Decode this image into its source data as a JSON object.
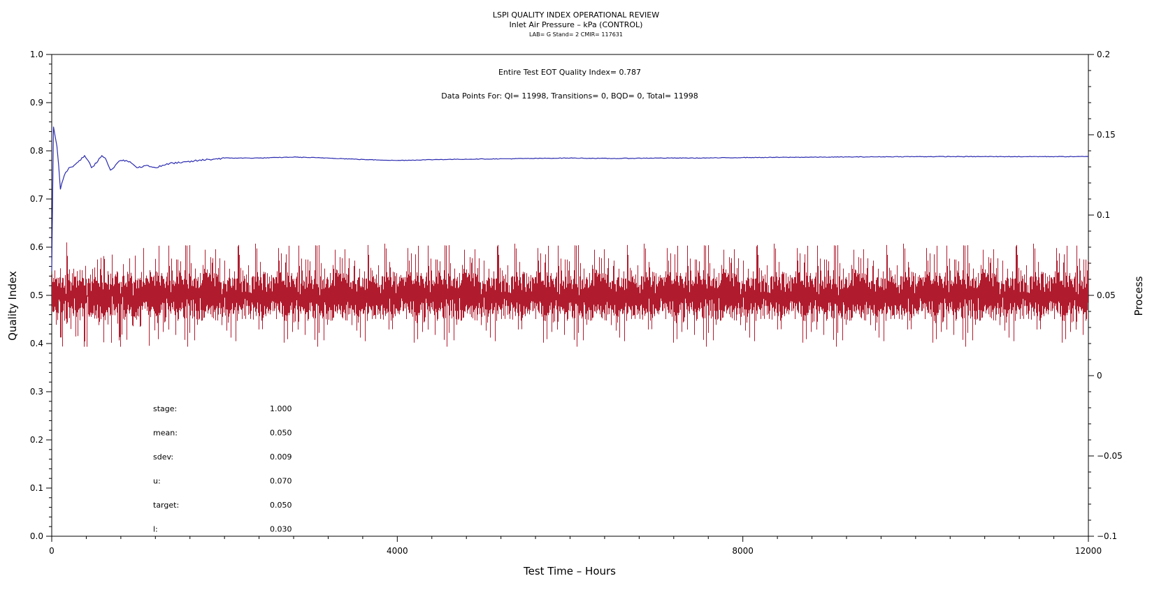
{
  "chart_data": {
    "type": "line",
    "title": "LSPI QUALITY INDEX OPERATIONAL REVIEW",
    "subtitle": "Inlet Air Pressure – kPa (CONTROL)",
    "subtitle2": "LAB= G Stand= 2 CMIR= 117631",
    "xlabel": "Test Time – Hours",
    "ylabel": "Quality Index",
    "y2label": "Process",
    "xlim": [
      0,
      12000
    ],
    "ylim": [
      0,
      1.0
    ],
    "y2lim": [
      -0.1,
      0.2
    ],
    "x_ticks": [
      "0",
      "4000",
      "8000",
      "12000"
    ],
    "y_ticks": [
      "0.0",
      "0.1",
      "0.2",
      "0.3",
      "0.4",
      "0.5",
      "0.6",
      "0.7",
      "0.8",
      "0.9",
      "1.0"
    ],
    "y2_ticks": [
      "−0.1",
      "−0.05",
      "0",
      "0.05",
      "0.1",
      "0.15",
      "0.2"
    ],
    "annotation_quality": "Entire Test EOT Quality Index=   0.787",
    "annotation_points": "Data Points For: QI= 11998, Transitions=     0, BQD=     0, Total= 11998",
    "stats": [
      {
        "label": "stage:",
        "value": "1.000"
      },
      {
        "label": "mean:",
        "value": "0.050"
      },
      {
        "label": "sdev:",
        "value": "0.009"
      },
      {
        "label": "u:",
        "value": "0.070"
      },
      {
        "label": "target:",
        "value": "0.050"
      },
      {
        "label": "l:",
        "value": "0.030"
      }
    ],
    "series": [
      {
        "axis": "left",
        "color": "#2b2bb0",
        "x": [
          0,
          20,
          40,
          60,
          80,
          100,
          130,
          160,
          200,
          260,
          320,
          380,
          420,
          460,
          520,
          580,
          620,
          680,
          720,
          760,
          800,
          860,
          920,
          1000,
          1100,
          1200,
          1300,
          1400,
          1500,
          1700,
          2000,
          2400,
          2800,
          3200,
          3600,
          4000,
          4500,
          5000,
          5500,
          6000,
          6500,
          7000,
          7500,
          8000,
          9000,
          10000,
          11000,
          12000
        ],
        "values": [
          0.55,
          0.85,
          0.83,
          0.81,
          0.77,
          0.72,
          0.74,
          0.755,
          0.765,
          0.77,
          0.78,
          0.79,
          0.78,
          0.765,
          0.775,
          0.79,
          0.785,
          0.76,
          0.765,
          0.775,
          0.78,
          0.78,
          0.775,
          0.765,
          0.77,
          0.765,
          0.77,
          0.775,
          0.775,
          0.78,
          0.785,
          0.785,
          0.787,
          0.785,
          0.782,
          0.78,
          0.782,
          0.783,
          0.784,
          0.785,
          0.784,
          0.785,
          0.785,
          0.786,
          0.787,
          0.788,
          0.788,
          0.788
        ]
      },
      {
        "axis": "right",
        "color": "#b01c2e",
        "noise_series": true,
        "mean": 0.05,
        "sdev": 0.009,
        "min": 0.018,
        "max": 0.087,
        "n_points": 11998
      }
    ]
  }
}
